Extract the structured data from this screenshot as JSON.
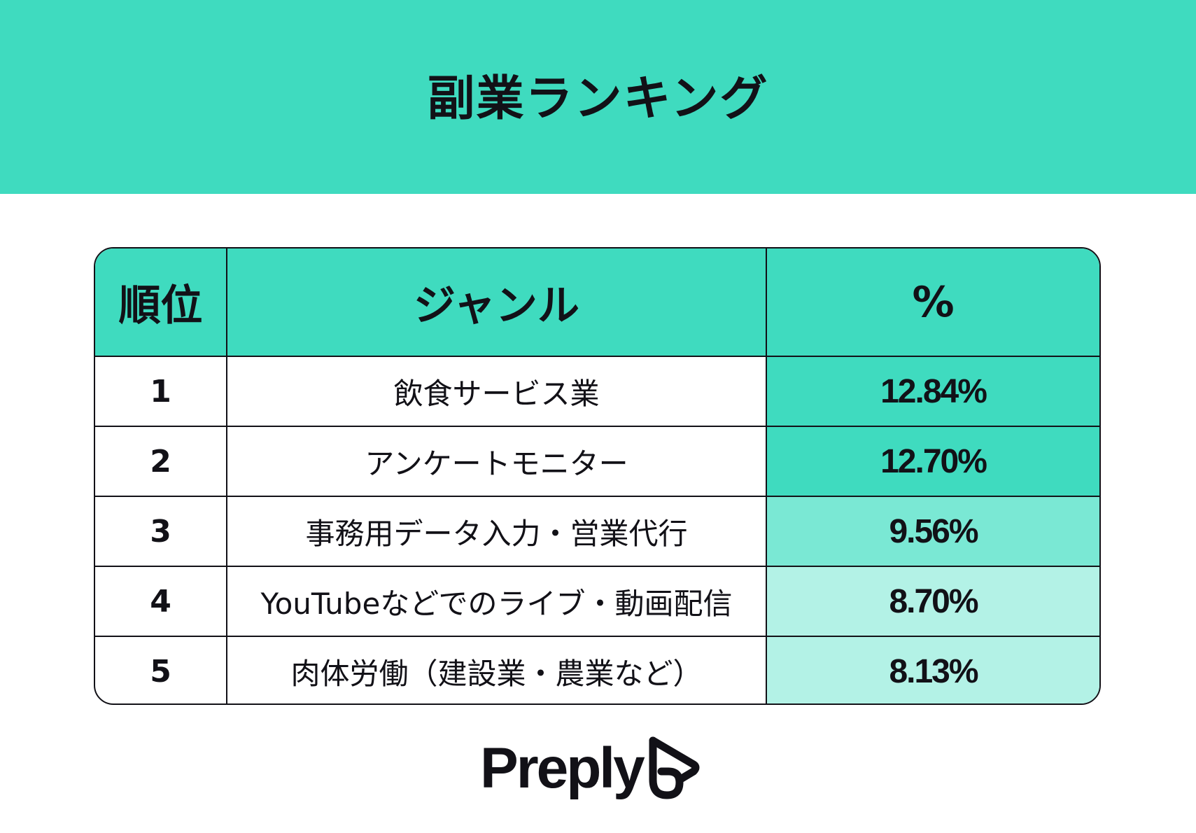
{
  "header": {
    "title": "副業ランキング",
    "background": "#3fdbbf"
  },
  "table": {
    "columns": [
      "順位",
      "ジャンル",
      "%"
    ]
  },
  "chart_data": {
    "type": "table",
    "title": "副業ランキング",
    "columns": [
      "順位",
      "ジャンル",
      "%"
    ],
    "rows": [
      {
        "rank": "1",
        "genre": "飲食サービス業",
        "percent": "12.84%",
        "value": 12.84,
        "shade": "#3fdbbf"
      },
      {
        "rank": "2",
        "genre": "アンケートモニター",
        "percent": "12.70%",
        "value": 12.7,
        "shade": "#3fdbbf"
      },
      {
        "rank": "3",
        "genre": "事務用データ入力・営業代行",
        "percent": "9.56%",
        "value": 9.56,
        "shade": "#7ae8d4"
      },
      {
        "rank": "4",
        "genre": "YouTubeなどでのライブ・動画配信",
        "percent": "8.70%",
        "value": 8.7,
        "shade": "#b3f2e6"
      },
      {
        "rank": "5",
        "genre": "肉体労働（建設業・農業など）",
        "percent": "8.13%",
        "value": 8.13,
        "shade": "#b3f2e6"
      }
    ]
  },
  "footer": {
    "logo_text": "Preply",
    "logo_icon": "preply-logo-icon"
  }
}
